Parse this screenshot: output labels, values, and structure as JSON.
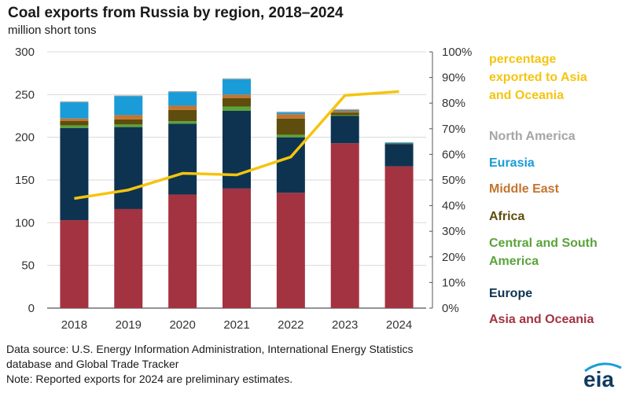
{
  "header": {
    "title": "Coal exports from Russia by region, 2018–2024",
    "subtitle": "million short tons"
  },
  "chart_data": {
    "type": "bar",
    "stacked": true,
    "categories": [
      "2018",
      "2019",
      "2020",
      "2021",
      "2022",
      "2023",
      "2024"
    ],
    "ylim": [
      0,
      300
    ],
    "yticks": [
      "0",
      "50",
      "100",
      "150",
      "200",
      "250",
      "300"
    ],
    "y2lim": [
      0,
      100
    ],
    "y2ticks": [
      "0%",
      "10%",
      "20%",
      "30%",
      "40%",
      "50%",
      "60%",
      "70%",
      "80%",
      "90%",
      "100%"
    ],
    "series": [
      {
        "name": "Asia and Oceania",
        "color": "#a33340",
        "values": [
          103,
          116,
          133,
          140,
          135,
          193,
          166
        ]
      },
      {
        "name": "Europe",
        "color": "#0e3350",
        "values": [
          108,
          96,
          83,
          91,
          65,
          32,
          26
        ]
      },
      {
        "name": "Central and South America",
        "color": "#5ba33b",
        "values": [
          3,
          3,
          3,
          5,
          3,
          1,
          0
        ]
      },
      {
        "name": "Africa",
        "color": "#5e4d0d",
        "values": [
          5,
          6,
          13,
          10,
          19,
          3,
          1
        ]
      },
      {
        "name": "Middle East",
        "color": "#c4742f",
        "values": [
          3,
          5,
          5,
          4,
          5,
          2,
          0
        ]
      },
      {
        "name": "Eurasia",
        "color": "#1a9cd8",
        "values": [
          19,
          22,
          16,
          18,
          2,
          1,
          1
        ]
      },
      {
        "name": "North America",
        "color": "#a5a5a5",
        "values": [
          1,
          1,
          1,
          1,
          1,
          1,
          0
        ]
      }
    ],
    "line_series": {
      "name": "percentage exported to Asia and Oceania",
      "color": "#f5c40f",
      "axis": "right",
      "values": [
        42.8,
        46.1,
        52.6,
        52,
        59,
        83,
        84.5
      ]
    },
    "legend": {
      "line_label_lines": [
        "percentage",
        "exported to Asia",
        "and Oceania"
      ],
      "north_america": "North America",
      "eurasia": "Eurasia",
      "middle_east": "Middle East",
      "africa": "Africa",
      "csa_lines": [
        "Central and South",
        "America"
      ],
      "europe": "Europe",
      "asia": "Asia and Oceania"
    }
  },
  "footer": {
    "source_line1": "Data source: U.S. Energy Information Administration, International Energy Statistics",
    "source_line2": "database and Global Trade Tracker",
    "note": "Note: Reported exports for 2024 are preliminary estimates."
  },
  "logo": {
    "text": "eia",
    "color": "#0f3b5f",
    "accent": "#1a9cd8"
  }
}
